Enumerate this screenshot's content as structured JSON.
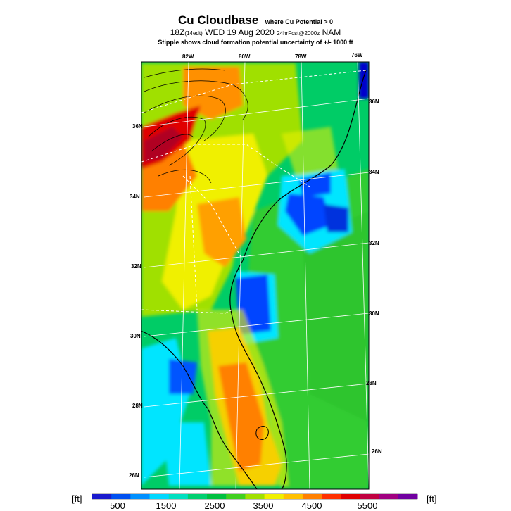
{
  "title": {
    "main": "Cu Cloudbase",
    "qualifier": "where Cu Potential > 0",
    "valid_time_main": "18Z",
    "valid_time_local": "(14edt)",
    "valid_date": "WED 19 Aug 2020",
    "forecast": "24hrFcst@2000z",
    "model": "NAM",
    "subtitle": "Stipple shows cloud formation potential uncertainty of +/- 1000 ft"
  },
  "top_axis": [
    "82W",
    "80W",
    "78W",
    "76W"
  ],
  "left_axis": [
    "36N",
    "34N",
    "32N",
    "30N",
    "28N",
    "26N"
  ],
  "right_axis": [
    "36N",
    "34N",
    "32N",
    "30N",
    "28N",
    "26N"
  ],
  "colorbar": {
    "unit_left": "[ft]",
    "unit_right": "[ft]",
    "labels": [
      "500",
      "1500",
      "2500",
      "3500",
      "4500",
      "5500"
    ],
    "colors": [
      "#1a1acd",
      "#0050f0",
      "#0090ff",
      "#00d8ff",
      "#00e0c0",
      "#00d070",
      "#00c040",
      "#40d020",
      "#a0e000",
      "#f0f000",
      "#ffc000",
      "#ff8000",
      "#ff3000",
      "#e00000",
      "#c00040",
      "#a00080",
      "#7000a0"
    ]
  },
  "colors": {
    "ocean": "#00cc66",
    "land_default": "#33cc33",
    "high_base": "#ff8000",
    "very_high_base": "#e00000",
    "low_base": "#0044ff",
    "very_low_base": "#00e5ff"
  }
}
